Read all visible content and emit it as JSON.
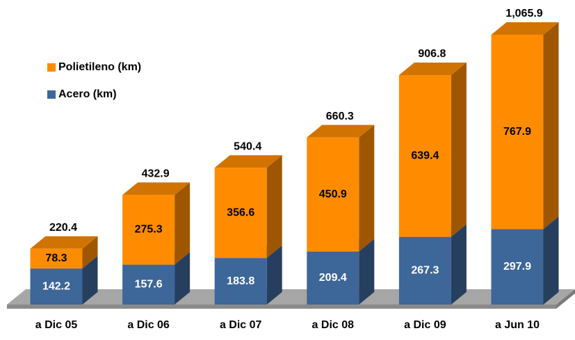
{
  "chart_data": {
    "type": "stacked-bar-3d",
    "categories": [
      "a Dic 05",
      "a Dic 06",
      "a Dic 07",
      "a Dic 08",
      "a Dic 09",
      "a Jun 10"
    ],
    "series": [
      {
        "name": "Acero (km)",
        "color": "#3d6699",
        "values": [
          142.2,
          157.6,
          183.8,
          209.4,
          267.3,
          297.9
        ]
      },
      {
        "name": "Polietileno (km)",
        "color": "#ff8c00",
        "values": [
          78.3,
          275.3,
          356.6,
          450.9,
          639.4,
          767.9
        ]
      }
    ],
    "totals": [
      220.4,
      432.9,
      540.4,
      660.3,
      906.8,
      1065.9
    ],
    "total_labels": [
      "220.4",
      "432.9",
      "540.4",
      "660.3",
      "906.8",
      "1,065.9"
    ],
    "legend": "upper left"
  }
}
